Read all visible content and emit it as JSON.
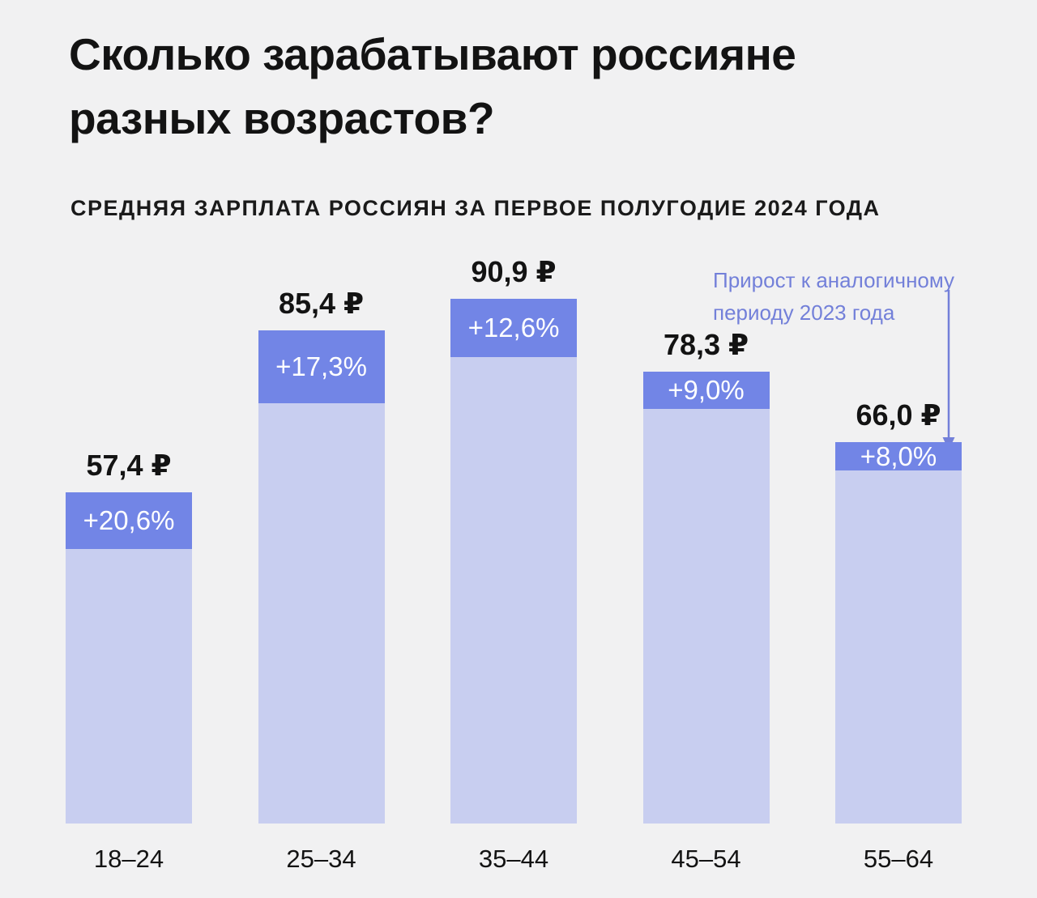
{
  "page": {
    "background_color": "#F1F1F2"
  },
  "header": {
    "title_line1": "Сколько зарабатывают россияне",
    "title_line2": "разных возрастов?",
    "subtitle": "СРЕДНЯЯ ЗАРПЛАТА РОССИЯН ЗА ПЕРВОЕ ПОЛУГОДИЕ 2024 ГОДА"
  },
  "annotation": {
    "line1": "Прирост к аналогичному",
    "line2": "периоду 2023 года",
    "color": "#7380D9"
  },
  "chart_data": {
    "type": "bar",
    "title": "Сколько зарабатывают россияне разных возрастов?",
    "subtitle": "СРЕДНЯЯ ЗАРПЛАТА РОССИЯН ЗА ПЕРВОЕ ПОЛУГОДИЕ 2024 ГОДА",
    "annotation_text": "Прирост к аналогичному периоду 2023 года",
    "xlabel": "",
    "ylabel": "",
    "ylim": [
      0,
      91
    ],
    "grid": false,
    "categories": [
      "18–24",
      "25–34",
      "35–44",
      "45–54",
      "55–64"
    ],
    "bars": [
      {
        "category": "18–24",
        "value": 57.4,
        "value_label": "57,4 ₽",
        "growth_pct": 20.6,
        "growth_label": "+20,6%"
      },
      {
        "category": "25–34",
        "value": 85.4,
        "value_label": "85,4 ₽",
        "growth_pct": 17.3,
        "growth_label": "+17,3%"
      },
      {
        "category": "35–44",
        "value": 90.9,
        "value_label": "90,9 ₽",
        "growth_pct": 12.6,
        "growth_label": "+12,6%"
      },
      {
        "category": "45–54",
        "value": 78.3,
        "value_label": "78,3 ₽",
        "growth_pct": 9.0,
        "growth_label": "+9,0%"
      },
      {
        "category": "55–64",
        "value": 66.0,
        "value_label": "66,0 ₽",
        "growth_pct": 8.0,
        "growth_label": "+8,0%"
      }
    ],
    "colors": {
      "bar_body": "#C8CEF0",
      "growth_segment": "#7285E6",
      "growth_text": "#FFFFFF",
      "value_text": "#131313",
      "annotation": "#7380D9"
    }
  }
}
